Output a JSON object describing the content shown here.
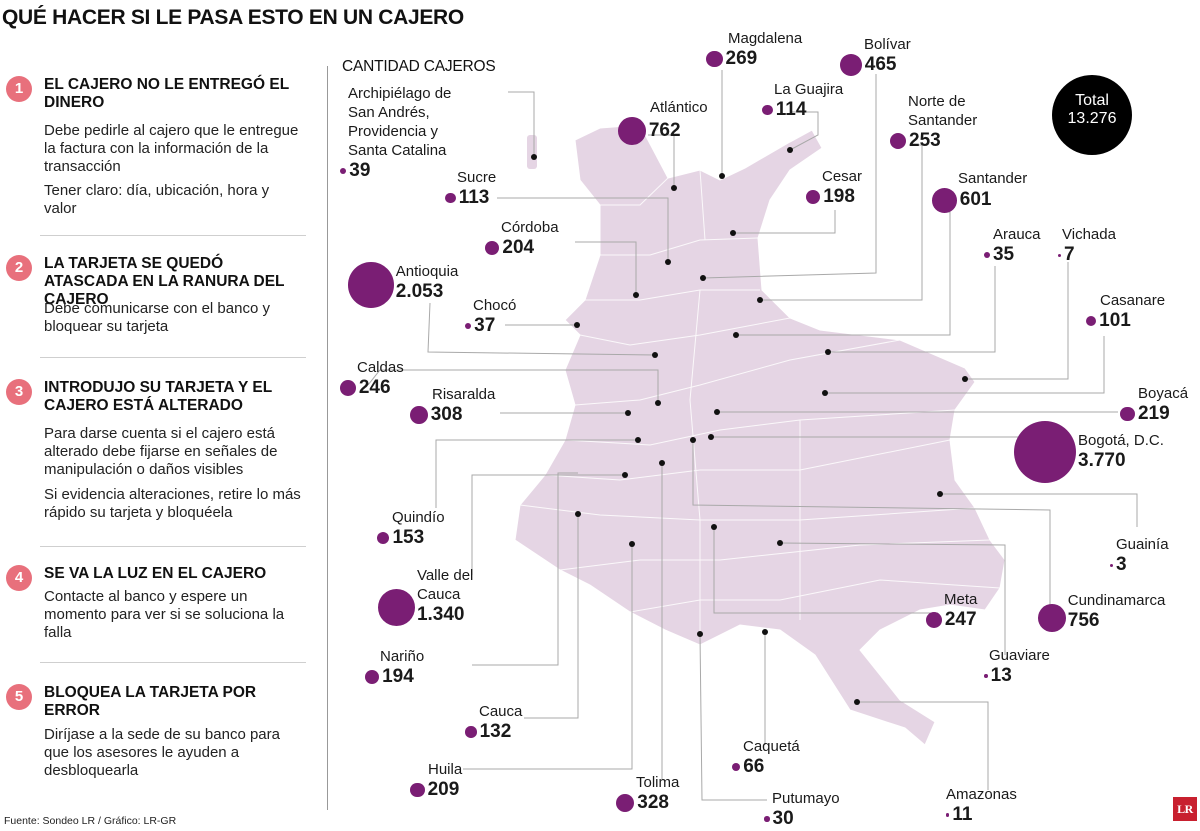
{
  "title": "QUÉ HACER SI LE PASA ESTO EN UN CAJERO",
  "map_heading": "CANTIDAD CAJEROS",
  "total": {
    "label": "Total",
    "value": "13.276"
  },
  "source": "Fuente: Sondeo LR / Gráfico: LR-GR",
  "logo": "LR",
  "colors": {
    "bubble": "#7a1e74",
    "country": "#e5d5e4",
    "tip_badge": "#e8707c"
  },
  "tips": [
    {
      "num": "1",
      "title": "EL CAJERO NO LE ENTREGÓ EL DINERO",
      "body": [
        "Debe pedirle al cajero que le entregue la factura con la información de la transacción",
        "Tener claro: día, ubicación, hora y valor"
      ]
    },
    {
      "num": "2",
      "title": "LA TARJETA SE QUEDÓ ATASCADA EN LA RANURA DEL CAJERO",
      "body": [
        "Debe comunicarse con el banco y bloquear su tarjeta"
      ]
    },
    {
      "num": "3",
      "title": "INTRODUJO SU TARJETA Y EL CAJERO ESTÁ ALTERADO",
      "body": [
        "Para darse cuenta si el cajero está alterado debe fijarse en señales de manipulación o daños visibles",
        "Si evidencia alteraciones, retire lo más rápido su tarjeta y bloquéela"
      ]
    },
    {
      "num": "4",
      "title": "SE VA LA LUZ EN EL CAJERO",
      "body": [
        "Contacte al banco y espere un momento para ver si se soluciona la falla"
      ]
    },
    {
      "num": "5",
      "title": "BLOQUEA LA TARJETA POR ERROR",
      "body": [
        "Diríjase a la sede de su banco para que los asesores le ayuden a desbloquearla"
      ]
    }
  ],
  "departments": [
    {
      "key": "magdalena",
      "name": "Magdalena",
      "value": "269",
      "count": 269
    },
    {
      "key": "bolivar",
      "name": "Bolívar",
      "value": "465",
      "count": 465
    },
    {
      "key": "la-guajira",
      "name": "La Guajira",
      "value": "114",
      "count": 114
    },
    {
      "key": "atlantico",
      "name": "Atlántico",
      "value": "762",
      "count": 762
    },
    {
      "key": "san-andres",
      "name": "Archipiélago de San Andrés, Providencia y Santa Catalina",
      "value": "39",
      "count": 39
    },
    {
      "key": "norte-santander",
      "name": "Norte de Santander",
      "value": "253",
      "count": 253
    },
    {
      "key": "sucre",
      "name": "Sucre",
      "value": "113",
      "count": 113
    },
    {
      "key": "cesar",
      "name": "Cesar",
      "value": "198",
      "count": 198
    },
    {
      "key": "santander",
      "name": "Santander",
      "value": "601",
      "count": 601
    },
    {
      "key": "cordoba",
      "name": "Córdoba",
      "value": "204",
      "count": 204
    },
    {
      "key": "arauca",
      "name": "Arauca",
      "value": "35",
      "count": 35
    },
    {
      "key": "vichada",
      "name": "Vichada",
      "value": "7",
      "count": 7
    },
    {
      "key": "antioquia",
      "name": "Antioquia",
      "value": "2.053",
      "count": 2053
    },
    {
      "key": "choco",
      "name": "Chocó",
      "value": "37",
      "count": 37
    },
    {
      "key": "casanare",
      "name": "Casanare",
      "value": "101",
      "count": 101
    },
    {
      "key": "caldas",
      "name": "Caldas",
      "value": "246",
      "count": 246
    },
    {
      "key": "risaralda",
      "name": "Risaralda",
      "value": "308",
      "count": 308
    },
    {
      "key": "boyaca",
      "name": "Boyacá",
      "value": "219",
      "count": 219
    },
    {
      "key": "bogota",
      "name": "Bogotá, D.C.",
      "value": "3.770",
      "count": 3770
    },
    {
      "key": "quindio",
      "name": "Quindío",
      "value": "153",
      "count": 153
    },
    {
      "key": "guainia",
      "name": "Guainía",
      "value": "3",
      "count": 3
    },
    {
      "key": "valle",
      "name": "Valle del Cauca",
      "value": "1.340",
      "count": 1340
    },
    {
      "key": "meta",
      "name": "Meta",
      "value": "247",
      "count": 247
    },
    {
      "key": "cundinamarca",
      "name": "Cundinamarca",
      "value": "756",
      "count": 756
    },
    {
      "key": "narino",
      "name": "Nariño",
      "value": "194",
      "count": 194
    },
    {
      "key": "guaviare",
      "name": "Guaviare",
      "value": "13",
      "count": 13
    },
    {
      "key": "cauca",
      "name": "Cauca",
      "value": "132",
      "count": 132
    },
    {
      "key": "caqueta",
      "name": "Caquetá",
      "value": "66",
      "count": 66
    },
    {
      "key": "huila",
      "name": "Huila",
      "value": "209",
      "count": 209
    },
    {
      "key": "tolima",
      "name": "Tolima",
      "value": "328",
      "count": 328
    },
    {
      "key": "putumayo",
      "name": "Putumayo",
      "value": "30",
      "count": 30
    },
    {
      "key": "amazonas",
      "name": "Amazonas",
      "value": "11",
      "count": 11
    }
  ]
}
